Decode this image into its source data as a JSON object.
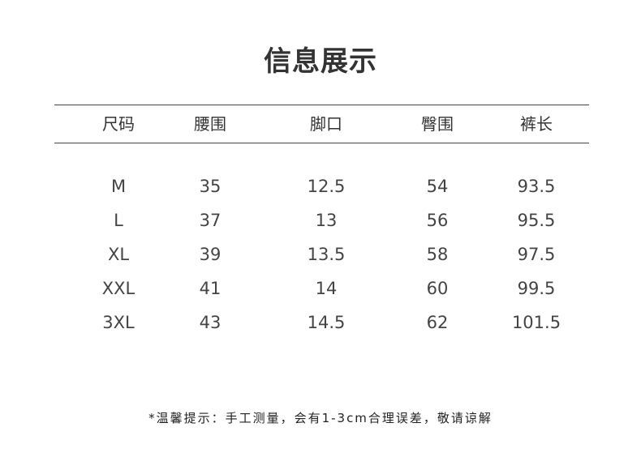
{
  "title": "信息展示",
  "table": {
    "headers": [
      "尺码",
      "腰围",
      "脚口",
      "臀围",
      "裤长"
    ],
    "rows": [
      [
        "M",
        "35",
        "12.5",
        "54",
        "93.5"
      ],
      [
        "L",
        "37",
        "13",
        "56",
        "95.5"
      ],
      [
        "XL",
        "39",
        "13.5",
        "58",
        "97.5"
      ],
      [
        "XXL",
        "41",
        "14",
        "60",
        "99.5"
      ],
      [
        "3XL",
        "43",
        "14.5",
        "62",
        "101.5"
      ]
    ]
  },
  "note": "*温馨提示：手工测量，会有1-3cm合理误差，敬请谅解"
}
